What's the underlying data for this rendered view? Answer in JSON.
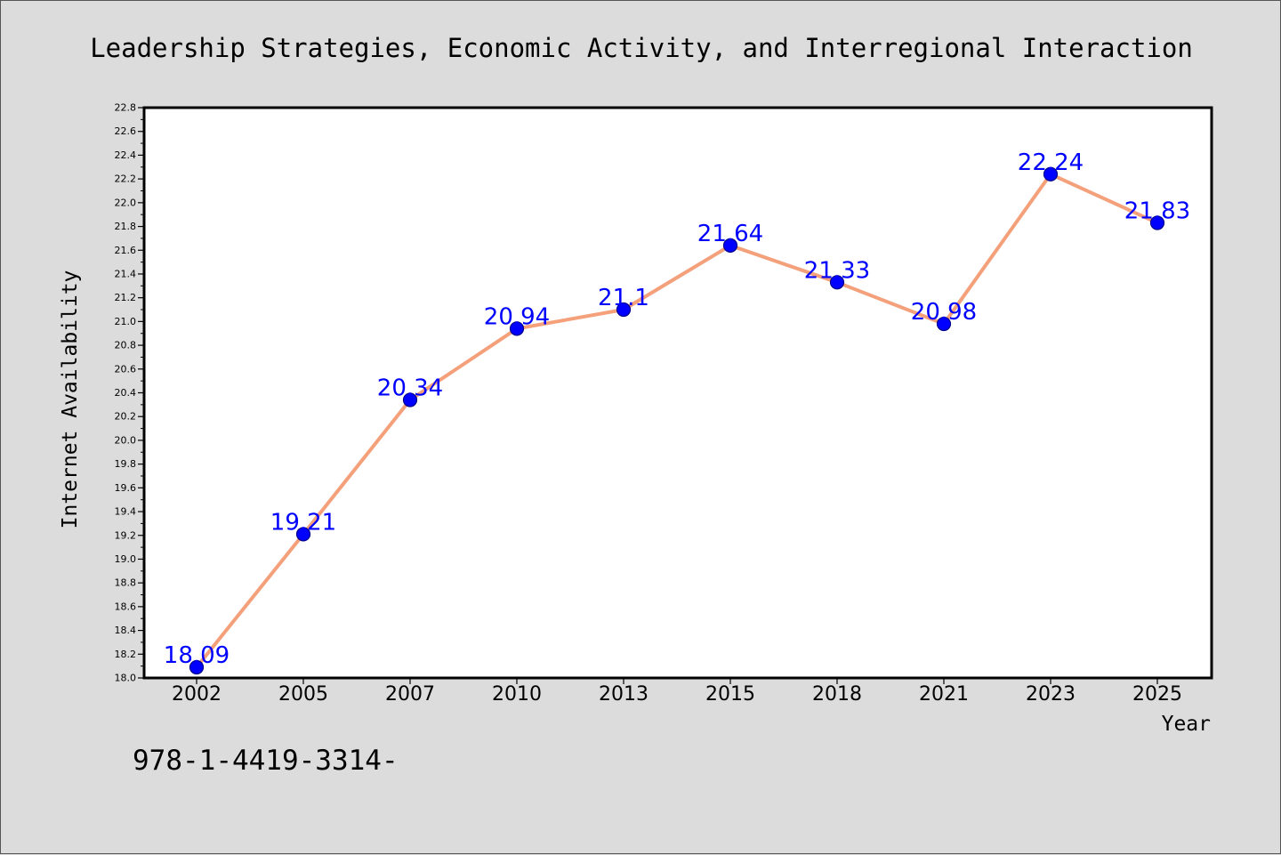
{
  "chart_data": {
    "type": "line",
    "title": "Leadership Strategies, Economic Activity, and Interregional Interaction",
    "xlabel": "Year",
    "ylabel": "Internet Availability",
    "categories": [
      "2002",
      "2005",
      "2007",
      "2010",
      "2013",
      "2015",
      "2018",
      "2021",
      "2023",
      "2025"
    ],
    "series": [
      {
        "values": [
          18.09,
          19.21,
          20.34,
          20.94,
          21.1,
          21.64,
          21.33,
          20.98,
          22.24,
          21.83
        ],
        "data_labels": [
          "18.09",
          "19.21",
          "20.34",
          "20.94",
          "21.1",
          "21.64",
          "21.33",
          "20.98",
          "22.24",
          "21.83"
        ]
      }
    ],
    "ylim": [
      18.0,
      22.8
    ],
    "yticks": [
      "18.0",
      "18.2",
      "18.4",
      "18.6",
      "18.8",
      "19.0",
      "19.2",
      "19.4",
      "19.6",
      "19.8",
      "20.0",
      "20.2",
      "20.4",
      "20.6",
      "20.8",
      "21.0",
      "21.2",
      "21.4",
      "21.6",
      "21.8",
      "22.0",
      "22.2",
      "22.4",
      "22.6",
      "22.8"
    ],
    "grid": false,
    "legend": "none",
    "colors": {
      "line": "#f4a07a",
      "marker": "#0000ff",
      "marker_edge": "#00008b",
      "data_label": "#0000ff",
      "plot_background": "#ffffff",
      "figure_background": "#dcdcdc"
    }
  },
  "footer": {
    "isbn": "978-1-4419-3314-"
  }
}
